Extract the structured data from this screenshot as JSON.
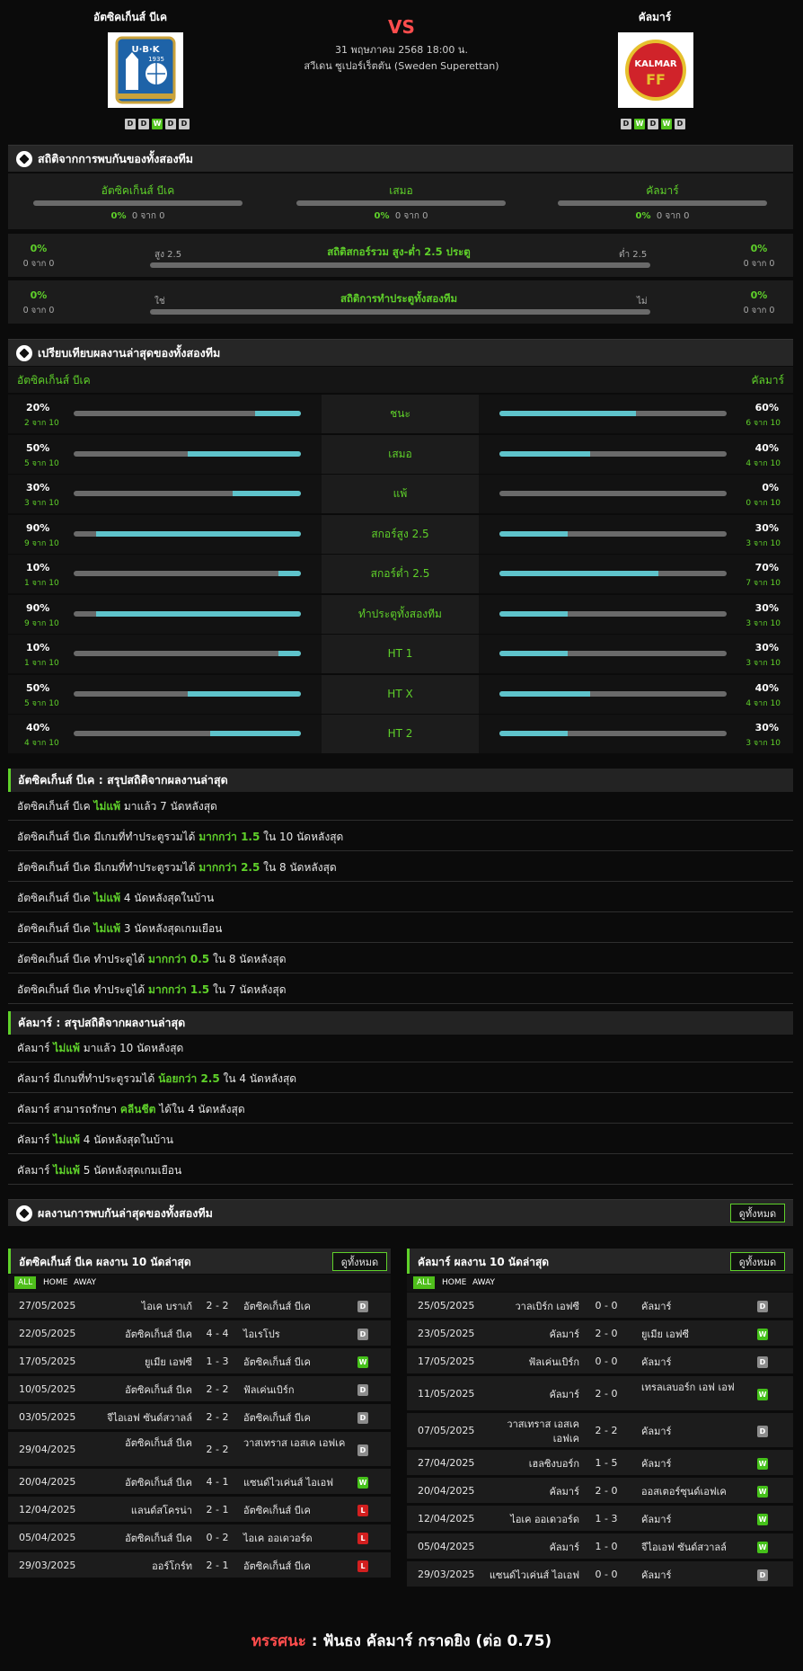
{
  "home_team": {
    "name": "อัตซิคเก็นส์ บีเค",
    "form": [
      "D",
      "D",
      "W",
      "D",
      "D"
    ]
  },
  "away_team": {
    "name": "คัลมาร์",
    "form": [
      "D",
      "W",
      "D",
      "W",
      "D"
    ]
  },
  "match": {
    "vs": "VS",
    "datetime": "31 พฤษภาคม 2568 18:00 น.",
    "league": "สวีเดน ซูเปอร์เร็ตตัน (Sweden Superettan)"
  },
  "h2h": {
    "title": "สถิติจากการพบกันของทั้งสองทีม",
    "home": {
      "label": "อัตซิคเก็นส์ บีเค",
      "pct": "0%",
      "count": "0 จาก 0"
    },
    "draw": {
      "label": "เสมอ",
      "pct": "0%",
      "count": "0 จาก 0"
    },
    "away": {
      "label": "คัลมาร์",
      "pct": "0%",
      "count": "0 จาก 0"
    },
    "overunder": {
      "title": "สถิติสกอร์รวม สูง-ต่ำ 2.5 ประตู",
      "left_label": "สูง 2.5",
      "right_label": "ต่ำ 2.5",
      "left_pct": "0%",
      "left_count": "0 จาก 0",
      "right_pct": "0%",
      "right_count": "0 จาก 0"
    },
    "btts": {
      "title": "สถิติการทำประตูทั้งสองทีม",
      "left_label": "ใช่",
      "right_label": "ไม่",
      "left_pct": "0%",
      "left_count": "0 จาก 0",
      "right_pct": "0%",
      "right_count": "0 จาก 0"
    }
  },
  "compare": {
    "title": "เปรียบเทียบผลงานล่าสุดของทั้งสองทีม",
    "home_label": "อัตซิคเก็นส์ บีเค",
    "away_label": "คัลมาร์",
    "rows": [
      {
        "label": "ชนะ",
        "home_pct": "20%",
        "home_count": "2 จาก 10",
        "home_frac": 0.2,
        "away_pct": "60%",
        "away_count": "6 จาก 10",
        "away_frac": 0.6
      },
      {
        "label": "เสมอ",
        "home_pct": "50%",
        "home_count": "5 จาก 10",
        "home_frac": 0.5,
        "away_pct": "40%",
        "away_count": "4 จาก 10",
        "away_frac": 0.4
      },
      {
        "label": "แพ้",
        "home_pct": "30%",
        "home_count": "3 จาก 10",
        "home_frac": 0.3,
        "away_pct": "0%",
        "away_count": "0 จาก 10",
        "away_frac": 0.0
      },
      {
        "label": "สกอร์สูง 2.5",
        "home_pct": "90%",
        "home_count": "9 จาก 10",
        "home_frac": 0.9,
        "away_pct": "30%",
        "away_count": "3 จาก 10",
        "away_frac": 0.3
      },
      {
        "label": "สกอร์ต่ำ 2.5",
        "home_pct": "10%",
        "home_count": "1 จาก 10",
        "home_frac": 0.1,
        "away_pct": "70%",
        "away_count": "7 จาก 10",
        "away_frac": 0.7
      },
      {
        "label": "ทำประตูทั้งสองทีม",
        "home_pct": "90%",
        "home_count": "9 จาก 10",
        "home_frac": 0.9,
        "away_pct": "30%",
        "away_count": "3 จาก 10",
        "away_frac": 0.3
      },
      {
        "label": "HT 1",
        "home_pct": "10%",
        "home_count": "1 จาก 10",
        "home_frac": 0.1,
        "away_pct": "30%",
        "away_count": "3 จาก 10",
        "away_frac": 0.3
      },
      {
        "label": "HT X",
        "home_pct": "50%",
        "home_count": "5 จาก 10",
        "home_frac": 0.5,
        "away_pct": "40%",
        "away_count": "4 จาก 10",
        "away_frac": 0.4
      },
      {
        "label": "HT 2",
        "home_pct": "40%",
        "home_count": "4 จาก 10",
        "home_frac": 0.4,
        "away_pct": "30%",
        "away_count": "3 จาก 10",
        "away_frac": 0.3
      }
    ]
  },
  "home_summary": {
    "title": "อัตซิคเก็นส์ บีเค : สรุปสถิติจากผลงานล่าสุด",
    "rows": [
      [
        {
          "t": "อัตซิคเก็นส์ บีเค "
        },
        {
          "t": "ไม่แพ้",
          "g": true
        },
        {
          "t": " มาแล้ว 7 นัดหลังสุด"
        }
      ],
      [
        {
          "t": "อัตซิคเก็นส์ บีเค มีเกมที่ทำประตูรวมได้ "
        },
        {
          "t": "มากกว่า 1.5",
          "g": true
        },
        {
          "t": " ใน 10 นัดหลังสุด"
        }
      ],
      [
        {
          "t": "อัตซิคเก็นส์ บีเค มีเกมที่ทำประตูรวมได้ "
        },
        {
          "t": "มากกว่า 2.5",
          "g": true
        },
        {
          "t": " ใน 8 นัดหลังสุด"
        }
      ],
      [
        {
          "t": "อัตซิคเก็นส์ บีเค "
        },
        {
          "t": "ไม่แพ้",
          "g": true
        },
        {
          "t": " 4 นัดหลังสุดในบ้าน"
        }
      ],
      [
        {
          "t": "อัตซิคเก็นส์ บีเค "
        },
        {
          "t": "ไม่แพ้",
          "g": true
        },
        {
          "t": " 3 นัดหลังสุดเกมเยือน"
        }
      ],
      [
        {
          "t": "อัตซิคเก็นส์ บีเค ทำประตูได้ "
        },
        {
          "t": "มากกว่า 0.5",
          "g": true
        },
        {
          "t": " ใน 8 นัดหลังสุด"
        }
      ],
      [
        {
          "t": "อัตซิคเก็นส์ บีเค ทำประตูได้ "
        },
        {
          "t": "มากกว่า 1.5",
          "g": true
        },
        {
          "t": " ใน 7 นัดหลังสุด"
        }
      ]
    ]
  },
  "away_summary": {
    "title": "คัลมาร์ : สรุปสถิติจากผลงานล่าสุด",
    "rows": [
      [
        {
          "t": "คัลมาร์ "
        },
        {
          "t": "ไม่แพ้",
          "g": true
        },
        {
          "t": " มาแล้ว 10 นัดหลังสุด"
        }
      ],
      [
        {
          "t": "คัลมาร์ มีเกมที่ทำประตูรวมได้ "
        },
        {
          "t": "น้อยกว่า 2.5",
          "g": true
        },
        {
          "t": " ใน 4 นัดหลังสุด"
        }
      ],
      [
        {
          "t": "คัลมาร์ สามารถรักษา "
        },
        {
          "t": "คลีนชีต",
          "g": true
        },
        {
          "t": " ได้ใน 4 นัดหลังสุด"
        }
      ],
      [
        {
          "t": "คัลมาร์ "
        },
        {
          "t": "ไม่แพ้",
          "g": true
        },
        {
          "t": " 4 นัดหลังสุดในบ้าน"
        }
      ],
      [
        {
          "t": "คัลมาร์ "
        },
        {
          "t": "ไม่แพ้",
          "g": true
        },
        {
          "t": " 5 นัดหลังสุดเกมเยือน"
        }
      ]
    ]
  },
  "recent_h2h": {
    "title": "ผลงานการพบกันล่าสุดของทั้งสองทีม",
    "view_all": "ดูทั้งหมด"
  },
  "home_results": {
    "title": "อัตซิคเก็นส์ บีเค ผลงาน 10 นัดล่าสุด",
    "view_all": "ดูทั้งหมด",
    "tabs": [
      "ALL",
      "HOME",
      "AWAY"
    ],
    "rows": [
      {
        "date": "27/05/2025",
        "home": "ไอเค บราเก้",
        "score": "2 - 2",
        "away": "อัตซิคเก็นส์ บีเค",
        "res": "D"
      },
      {
        "date": "22/05/2025",
        "home": "อัตซิคเก็นส์ บีเค",
        "score": "4 - 4",
        "away": "ไอเรโปร",
        "res": "D"
      },
      {
        "date": "17/05/2025",
        "home": "ยูเมีย เอฟซี",
        "score": "1 - 3",
        "away": "อัตซิคเก็นส์ บีเค",
        "res": "W"
      },
      {
        "date": "10/05/2025",
        "home": "อัตซิคเก็นส์ บีเค",
        "score": "2 - 2",
        "away": "ฟัลเค่นเบิร์ก",
        "res": "D"
      },
      {
        "date": "03/05/2025",
        "home": "จีไอเอฟ ซันด์สวาลล์",
        "score": "2 - 2",
        "away": "อัตซิคเก็นส์ บีเค",
        "res": "D"
      },
      {
        "date": "29/04/2025",
        "home": "อัตซิคเก็นส์ บีเค",
        "score": "2 - 2",
        "away": "วาสเทราส เอสเค เอฟเค",
        "res": "D",
        "tall": true
      },
      {
        "date": "20/04/2025",
        "home": "อัตซิคเก็นส์ บีเค",
        "score": "4 - 1",
        "away": "แซนด์ไวเค่นส์ ไอเอฟ",
        "res": "W"
      },
      {
        "date": "12/04/2025",
        "home": "แลนด์สโครน่า",
        "score": "2 - 1",
        "away": "อัตซิคเก็นส์ บีเค",
        "res": "L"
      },
      {
        "date": "05/04/2025",
        "home": "อัตซิคเก็นส์ บีเค",
        "score": "0 - 2",
        "away": "ไอเค ออเดวอร์ด",
        "res": "L"
      },
      {
        "date": "29/03/2025",
        "home": "ออร์โกร์ท",
        "score": "2 - 1",
        "away": "อัตซิคเก็นส์ บีเค",
        "res": "L"
      }
    ]
  },
  "away_results": {
    "title": "คัลมาร์ ผลงาน 10 นัดล่าสุด",
    "view_all": "ดูทั้งหมด",
    "tabs": [
      "ALL",
      "HOME",
      "AWAY"
    ],
    "rows": [
      {
        "date": "25/05/2025",
        "home": "วาลเบิร์ก เอฟซี",
        "score": "0 - 0",
        "away": "คัลมาร์",
        "res": "D"
      },
      {
        "date": "23/05/2025",
        "home": "คัลมาร์",
        "score": "2 - 0",
        "away": "ยูเมีย เอฟซี",
        "res": "W"
      },
      {
        "date": "17/05/2025",
        "home": "ฟัลเค่นเบิร์ก",
        "score": "0 - 0",
        "away": "คัลมาร์",
        "res": "D"
      },
      {
        "date": "11/05/2025",
        "home": "คัลมาร์",
        "score": "2 - 0",
        "away": "เทรลเลบอร์ก เอฟ เอฟ",
        "res": "W",
        "tall": true
      },
      {
        "date": "07/05/2025",
        "home": "วาสเทราส เอสเค เอฟเค",
        "score": "2 - 2",
        "away": "คัลมาร์",
        "res": "D",
        "tall": true
      },
      {
        "date": "27/04/2025",
        "home": "เฮลซิงบอร์ก",
        "score": "1 - 5",
        "away": "คัลมาร์",
        "res": "W"
      },
      {
        "date": "20/04/2025",
        "home": "คัลมาร์",
        "score": "2 - 0",
        "away": "ออสเตอร์ซุนด์เอฟเค",
        "res": "W"
      },
      {
        "date": "12/04/2025",
        "home": "ไอเค ออเดวอร์ด",
        "score": "1 - 3",
        "away": "คัลมาร์",
        "res": "W"
      },
      {
        "date": "05/04/2025",
        "home": "คัลมาร์",
        "score": "1 - 0",
        "away": "จีไอเอฟ ซันด์สวาลล์",
        "res": "W"
      },
      {
        "date": "29/03/2025",
        "home": "แซนด์ไวเค่นส์ ไอเอฟ",
        "score": "0 - 0",
        "away": "คัลมาร์",
        "res": "D"
      }
    ]
  },
  "verdict": {
    "label": "ทรรศนะ",
    "sep": " : ",
    "text": "ฟันธง คัลมาร์ กราดยิง (ต่อ 0.75)"
  },
  "colors": {
    "accent_green": "#5fd12a",
    "bar_cyan": "#5ec3cb",
    "vs_red": "#ff4d4d",
    "loss_red": "#d21f1f"
  },
  "icons": {
    "section": "soccer-ball-icon"
  }
}
